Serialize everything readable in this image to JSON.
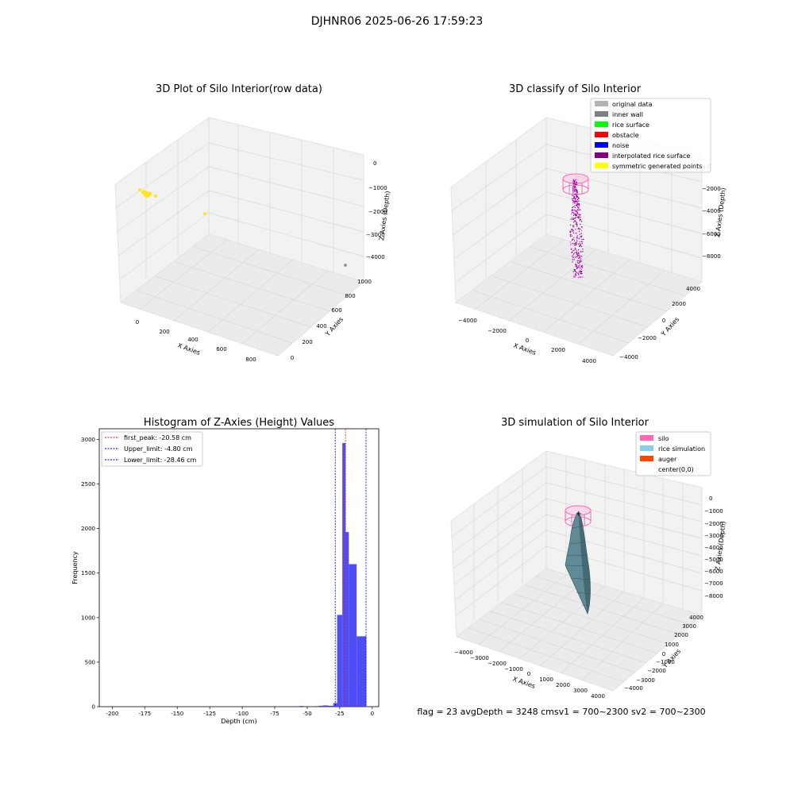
{
  "figure": {
    "suptitle": "DJHNR06 2025-06-26 17:59:23",
    "status_text": "flag = 23   avgDepth = 3248 cmsv1 = 700~2300  sv2 = 700~2300"
  },
  "chart_data": [
    {
      "type": "scatter",
      "title": "3D Plot of Silo Interior(row data)",
      "xlabel": "X Axies",
      "ylabel": "Y Axies",
      "zlabel": "Z Axies (Depth)",
      "x_ticks": [
        "0",
        "200",
        "400",
        "600",
        "800"
      ],
      "y_ticks": [
        "0",
        "200",
        "400",
        "600",
        "800",
        "1000"
      ],
      "z_ticks": [
        "0",
        "−1000",
        "−2000",
        "−3000",
        "−4000"
      ],
      "grid": true,
      "series": [
        {
          "color": "#ffe51a",
          "points": [
            [
              40,
              950,
              -300
            ],
            [
              50,
              920,
              -350
            ],
            [
              60,
              900,
              -380
            ],
            [
              90,
              880,
              -420
            ],
            [
              330,
              500,
              -1200
            ]
          ]
        },
        {
          "color": "#999999",
          "points": [
            [
              900,
              820,
              -4100
            ]
          ]
        }
      ]
    },
    {
      "type": "scatter",
      "title": "3D classify of Silo Interior",
      "xlabel": "X Axies",
      "ylabel": "Y Axies",
      "zlabel": "Z Axies (Depth)",
      "x_ticks": [
        "−4000",
        "−2000",
        "0",
        "2000",
        "4000"
      ],
      "y_ticks": [
        "−4000",
        "−2000",
        "0",
        "2000",
        "4000"
      ],
      "z_ticks": [
        "0",
        "−2000",
        "−4000",
        "−6000",
        "−8000"
      ],
      "grid": true,
      "legend_placement": "top-right",
      "legend": [
        {
          "label": "original data",
          "color": "#b3b3b3"
        },
        {
          "label": "inner wall",
          "color": "#808080"
        },
        {
          "label": "rice surface",
          "color": "#00ff00"
        },
        {
          "label": "obstacle",
          "color": "#ff0000"
        },
        {
          "label": "noise",
          "color": "#0000ff"
        },
        {
          "label": "interpolated rice surface",
          "color": "#800080"
        },
        {
          "label": "symmetric generated points",
          "color": "#ffff00"
        }
      ]
    },
    {
      "type": "bar",
      "title": "Histogram of Z-Axies (Height) Values",
      "xlabel": "Depth (cm)",
      "ylabel": "Frequency",
      "xlim": [
        -210,
        5
      ],
      "ylim": [
        0,
        3120
      ],
      "x_ticks": [
        -200,
        -175,
        -150,
        -125,
        -100,
        -75,
        -50,
        -25,
        0
      ],
      "y_ticks": [
        0,
        500,
        1000,
        1500,
        2000,
        2500,
        3000
      ],
      "bar_color": "#3b3bf5",
      "bins": [
        {
          "x0": -56,
          "x1": -53,
          "value": 8
        },
        {
          "x0": -44,
          "x1": -41,
          "value": 6
        },
        {
          "x0": -41,
          "x1": -38,
          "value": 10
        },
        {
          "x0": -38,
          "x1": -34,
          "value": 14
        },
        {
          "x0": -34,
          "x1": -30,
          "value": 10
        },
        {
          "x0": -30,
          "x1": -27,
          "value": 40
        },
        {
          "x0": -27,
          "x1": -23,
          "value": 1030
        },
        {
          "x0": -23,
          "x1": -20.5,
          "value": 2960
        },
        {
          "x0": -20.5,
          "x1": -18,
          "value": 1960
        },
        {
          "x0": -18,
          "x1": -12,
          "value": 1600
        },
        {
          "x0": -12,
          "x1": -4.5,
          "value": 790
        }
      ],
      "vlines": [
        {
          "label": "first_peak: -20.58 cm",
          "x": -20.58,
          "color": "#ff0000"
        },
        {
          "label": "Upper_limit: -4.80 cm",
          "x": -4.8,
          "color": "#0000cc"
        },
        {
          "label": "Lower_limit: -28.46 cm",
          "x": -28.46,
          "color": "#0000cc"
        }
      ],
      "legend_placement": "top-left"
    },
    {
      "type": "area",
      "title": "3D simulation of Silo Interior",
      "xlabel": "X Axies",
      "ylabel": "Y Axies",
      "zlabel": "Z Axies (Depth)",
      "x_ticks": [
        "−4000",
        "−3000",
        "−2000",
        "−1000",
        "0",
        "1000",
        "2000",
        "3000",
        "4000"
      ],
      "y_ticks": [
        "−4000",
        "−3000",
        "−2000",
        "−1000",
        "0",
        "1000",
        "2000",
        "3000",
        "4000"
      ],
      "z_ticks": [
        "0",
        "−1000",
        "−2000",
        "−3000",
        "−4000",
        "−5000",
        "−6000",
        "−7000",
        "−8000"
      ],
      "grid": true,
      "legend_placement": "top-right",
      "legend": [
        {
          "label": "silo",
          "color": "#ff69b4"
        },
        {
          "label": "rice simulation",
          "color": "#87ceeb"
        },
        {
          "label": "auger",
          "color": "#ff4500"
        },
        {
          "label": "center(0,0)",
          "color": ""
        }
      ]
    }
  ]
}
